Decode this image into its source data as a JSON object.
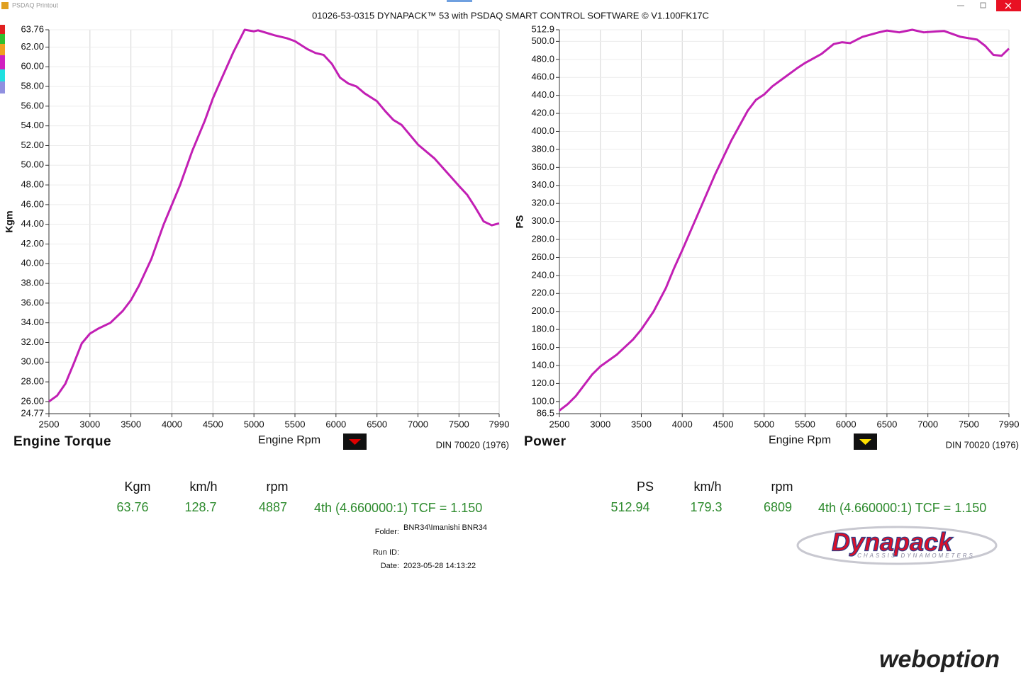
{
  "window": {
    "title": "PSDAQ Printout"
  },
  "header": {
    "title": "01026-53-0315 DYNAPACK™ 53 with PSDAQ SMART CONTROL SOFTWARE © V1.100FK17C"
  },
  "chart_data": [
    {
      "type": "line",
      "title": "Engine Torque",
      "x_label": "Engine Rpm",
      "y_label": "Kgm",
      "note": "DIN 70020 (1976)",
      "color": "#c21fb4",
      "marker_color": "#e00000",
      "grid": true,
      "xlim": [
        2500,
        7990
      ],
      "xticks": [
        2500,
        3000,
        3500,
        4000,
        4500,
        5000,
        5500,
        6000,
        6500,
        7000,
        7500,
        7990
      ],
      "ylim": [
        24.77,
        63.76
      ],
      "yticks": [
        24.77,
        {
          "value": 26,
          "label": "26.00"
        },
        {
          "value": 28,
          "label": "28.00"
        },
        {
          "value": 30,
          "label": "30.00"
        },
        {
          "value": 32,
          "label": "32.00"
        },
        {
          "value": 34,
          "label": "34.00"
        },
        {
          "value": 36,
          "label": "36.00"
        },
        {
          "value": 38,
          "label": "38.00"
        },
        {
          "value": 40,
          "label": "40.00"
        },
        {
          "value": 42,
          "label": "42.00"
        },
        {
          "value": 44,
          "label": "44.00"
        },
        {
          "value": 46,
          "label": "46.00"
        },
        {
          "value": 48,
          "label": "48.00"
        },
        {
          "value": 50,
          "label": "50.00"
        },
        {
          "value": 52,
          "label": "52.00"
        },
        {
          "value": 54,
          "label": "54.00"
        },
        {
          "value": 56,
          "label": "56.00"
        },
        {
          "value": 58,
          "label": "58.00"
        },
        {
          "value": 60,
          "label": "60.00"
        },
        {
          "value": 62,
          "label": "62.00"
        },
        63.76
      ],
      "x": [
        2500,
        2600,
        2700,
        2800,
        2900,
        3000,
        3100,
        3250,
        3400,
        3500,
        3600,
        3750,
        3900,
        4000,
        4100,
        4250,
        4400,
        4500,
        4600,
        4750,
        4887,
        5000,
        5050,
        5250,
        5400,
        5500,
        5650,
        5750,
        5850,
        5950,
        6050,
        6150,
        6250,
        6350,
        6500,
        6600,
        6700,
        6800,
        7000,
        7200,
        7350,
        7500,
        7600,
        7700,
        7800,
        7900,
        7990
      ],
      "values": [
        26.0,
        26.6,
        27.8,
        29.8,
        31.9,
        32.9,
        33.4,
        34.0,
        35.2,
        36.3,
        37.8,
        40.5,
        44.0,
        46.0,
        48.0,
        51.5,
        54.5,
        56.8,
        58.7,
        61.5,
        63.76,
        63.6,
        63.7,
        63.2,
        62.9,
        62.6,
        61.8,
        61.4,
        61.2,
        60.3,
        58.9,
        58.3,
        58.0,
        57.3,
        56.5,
        55.5,
        54.6,
        54.1,
        52.1,
        50.7,
        49.3,
        47.9,
        47.0,
        45.7,
        44.3,
        43.9,
        44.1
      ]
    },
    {
      "type": "line",
      "title": "Power",
      "x_label": "Engine Rpm",
      "y_label": "PS",
      "note": "DIN 70020 (1976)",
      "color": "#c21fb4",
      "marker_color": "#ffe000",
      "grid": true,
      "xlim": [
        2500,
        7990
      ],
      "xticks": [
        2500,
        3000,
        3500,
        4000,
        4500,
        5000,
        5500,
        6000,
        6500,
        7000,
        7500,
        7990
      ],
      "ylim": [
        86.5,
        512.9
      ],
      "yticks": [
        86.5,
        {
          "value": 100,
          "label": "100.0"
        },
        {
          "value": 120,
          "label": "120.0"
        },
        {
          "value": 140,
          "label": "140.0"
        },
        {
          "value": 160,
          "label": "160.0"
        },
        {
          "value": 180,
          "label": "180.0"
        },
        {
          "value": 200,
          "label": "200.0"
        },
        {
          "value": 220,
          "label": "220.0"
        },
        {
          "value": 240,
          "label": "240.0"
        },
        {
          "value": 260,
          "label": "260.0"
        },
        {
          "value": 280,
          "label": "280.0"
        },
        {
          "value": 300,
          "label": "300.0"
        },
        {
          "value": 320,
          "label": "320.0"
        },
        {
          "value": 340,
          "label": "340.0"
        },
        {
          "value": 360,
          "label": "360.0"
        },
        {
          "value": 380,
          "label": "380.0"
        },
        {
          "value": 400,
          "label": "400.0"
        },
        {
          "value": 420,
          "label": "420.0"
        },
        {
          "value": 440,
          "label": "440.0"
        },
        {
          "value": 460,
          "label": "460.0"
        },
        {
          "value": 480,
          "label": "480.0"
        },
        {
          "value": 500,
          "label": "500.0"
        },
        512.9
      ],
      "x": [
        2500,
        2600,
        2700,
        2800,
        2900,
        3000,
        3200,
        3400,
        3500,
        3650,
        3800,
        3900,
        4000,
        4200,
        4400,
        4600,
        4800,
        4900,
        5000,
        5100,
        5250,
        5400,
        5500,
        5700,
        5850,
        5950,
        6050,
        6200,
        6400,
        6500,
        6650,
        6809,
        6950,
        7100,
        7200,
        7400,
        7600,
        7700,
        7800,
        7900,
        7990
      ],
      "values": [
        90,
        97,
        106,
        118,
        130,
        139,
        152,
        169,
        180,
        200,
        226,
        248,
        268,
        310,
        352,
        390,
        423,
        435,
        441,
        450,
        460,
        470,
        476,
        486,
        497,
        499,
        498,
        505,
        510,
        512,
        510,
        512.9,
        510,
        511,
        511.5,
        505,
        502,
        495,
        485,
        484,
        492
      ]
    }
  ],
  "readouts": [
    {
      "headers": [
        "Kgm",
        "km/h",
        "rpm"
      ],
      "values": [
        63.76,
        128.7,
        4887
      ],
      "gear": "4th (4.660000:1) TCF = 1.150"
    },
    {
      "headers": [
        "PS",
        "km/h",
        "rpm"
      ],
      "values": [
        512.94,
        179.3,
        6809
      ],
      "gear": "4th (4.660000:1) TCF = 1.150"
    }
  ],
  "run_info": {
    "folder_label": "Folder:",
    "folder": "BNR34\\Imanishi BNR34",
    "run_id_label": "Run ID:",
    "date_label": "Date:",
    "date": "2023-05-28 14:13:22"
  },
  "logos": {
    "dynapack": "Dynapack",
    "dynapack_tagline": "CHASSIS DYNAMOMETERS",
    "weboption": "weboption"
  }
}
